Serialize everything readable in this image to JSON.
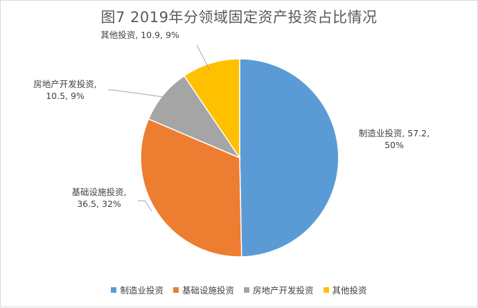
{
  "chart_data": {
    "type": "pie",
    "title": "图7  2019年分领域固定资产投资占比情况",
    "categories": [
      "制造业投资",
      "基础设施投资",
      "房地产开发投资",
      "其他投资"
    ],
    "values": [
      57.2,
      36.5,
      10.5,
      10.9
    ],
    "percents": [
      "50%",
      "32%",
      "9%",
      "9%"
    ],
    "colors": [
      "#5b9bd5",
      "#ed7d31",
      "#a5a5a5",
      "#ffc000"
    ],
    "data_labels": [
      [
        "制造业投资, 57.2,",
        "50%"
      ],
      [
        "基础设施投资,",
        "36.5, 32%"
      ],
      [
        "房地产开发投资,",
        "10.5, 9%"
      ],
      [
        "其他投资, 10.9, 9%"
      ]
    ],
    "legend": [
      "制造业投资",
      "基础设施投资",
      "房地产开发投资",
      "其他投资"
    ],
    "legend_position": "bottom"
  }
}
